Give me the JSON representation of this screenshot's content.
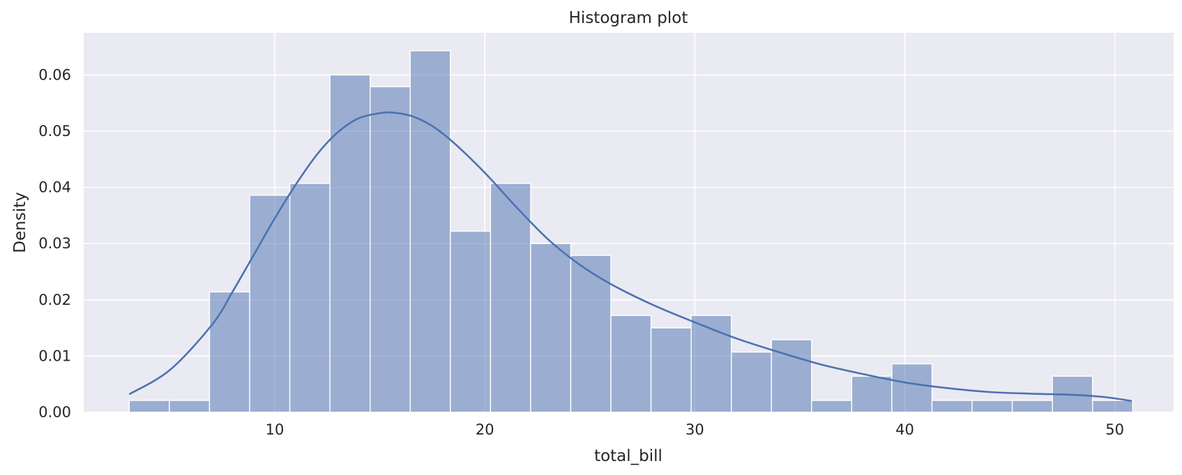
{
  "chart_data": {
    "type": "bar",
    "subtype": "histogram",
    "title": "Histogram plot",
    "xlabel": "total_bill",
    "ylabel": "Density",
    "xlim": [
      0.9,
      52.8
    ],
    "ylim": [
      0,
      0.0675
    ],
    "xticks": [
      10,
      20,
      30,
      40,
      50
    ],
    "yticks": [
      0.0,
      0.01,
      0.02,
      0.03,
      0.04,
      0.05,
      0.06
    ],
    "ytick_labels": [
      "0.00",
      "0.01",
      "0.02",
      "0.03",
      "0.04",
      "0.05",
      "0.06"
    ],
    "grid": true,
    "background": "#eaeaf2",
    "bar_color": "#4c72b0",
    "bar_opacity": 0.5,
    "line_color": "#4c72b0",
    "bins": {
      "x_min": 3.07,
      "bin_width": 1.9112,
      "densities": [
        0.0021,
        0.0021,
        0.0214,
        0.0386,
        0.0407,
        0.06,
        0.0579,
        0.0643,
        0.0322,
        0.0407,
        0.03,
        0.0279,
        0.0172,
        0.015,
        0.0172,
        0.0107,
        0.0129,
        0.0021,
        0.0064,
        0.0086,
        0.0021,
        0.0021,
        0.0021,
        0.0064,
        0.0021
      ]
    },
    "kde": {
      "x": [
        3.07,
        5,
        7,
        8,
        9,
        10,
        11,
        12,
        13,
        14,
        15,
        15.6,
        16.5,
        17.5,
        18.5,
        20,
        21.5,
        23,
        24.5,
        26,
        28,
        30,
        32,
        34,
        36,
        38,
        40,
        42,
        44,
        46,
        48,
        49.5,
        50.81
      ],
      "y": [
        0.0032,
        0.0075,
        0.0155,
        0.0215,
        0.028,
        0.0345,
        0.0405,
        0.0458,
        0.0498,
        0.0523,
        0.0532,
        0.0533,
        0.0527,
        0.0509,
        0.048,
        0.0426,
        0.0365,
        0.0308,
        0.0263,
        0.0228,
        0.0191,
        0.016,
        0.0131,
        0.0107,
        0.0085,
        0.0068,
        0.0053,
        0.0043,
        0.0036,
        0.0033,
        0.0031,
        0.0027,
        0.002
      ]
    }
  }
}
